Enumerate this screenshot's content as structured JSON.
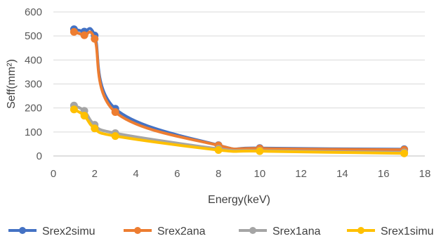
{
  "chart_data": {
    "type": "line",
    "xlabel": "Energy(keV)",
    "ylabel": "Seff(mm²)",
    "xlim": [
      0,
      18
    ],
    "ylim": [
      0,
      600
    ],
    "xticks": [
      0,
      2,
      4,
      6,
      8,
      10,
      12,
      14,
      16,
      18
    ],
    "yticks": [
      0,
      100,
      200,
      300,
      400,
      500,
      600
    ],
    "grid": "horizontal",
    "legend_position": "bottom",
    "series": [
      {
        "name": "Srex2simu",
        "color": "#4472C4",
        "x": [
          1,
          1.5,
          2,
          3,
          8,
          10,
          17
        ],
        "y": [
          528,
          518,
          502,
          197,
          45,
          33,
          28
        ]
      },
      {
        "name": "Srex2ana",
        "color": "#ED7D31",
        "x": [
          1,
          1.5,
          2,
          3,
          8,
          10,
          17
        ],
        "y": [
          517,
          503,
          488,
          183,
          44,
          31,
          26
        ]
      },
      {
        "name": "Srex1ana",
        "color": "#A5A5A5",
        "x": [
          1,
          1.5,
          2,
          3,
          8,
          10,
          17
        ],
        "y": [
          210,
          188,
          130,
          95,
          30,
          22,
          15
        ]
      },
      {
        "name": "Srex1simu",
        "color": "#FFC000",
        "x": [
          1,
          1.5,
          2,
          3,
          8,
          10,
          17
        ],
        "y": [
          194,
          168,
          115,
          83,
          25,
          20,
          11
        ]
      }
    ]
  }
}
